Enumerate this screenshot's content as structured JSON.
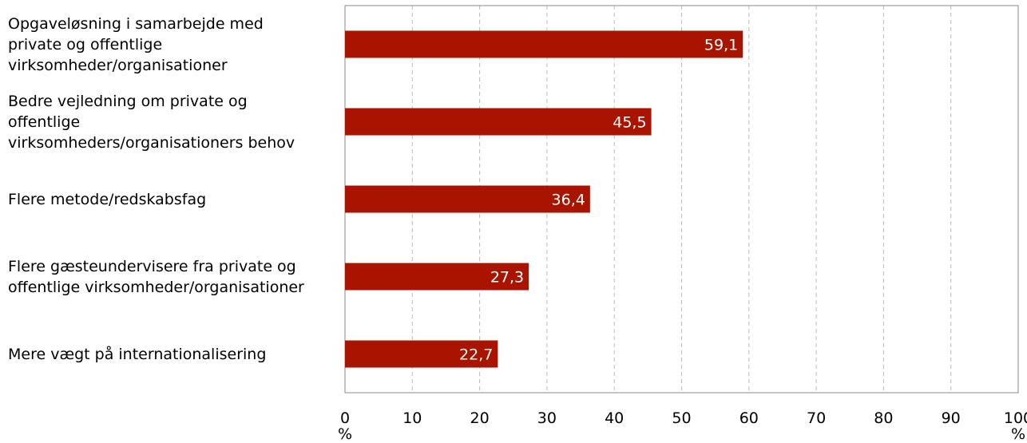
{
  "chart_data": {
    "type": "bar",
    "orientation": "horizontal",
    "categories": [
      "Opgaveløsning i samarbejde med\nprivate og offentlige\nvirksomheder/organisationer",
      "Bedre vejledning om private og\noffentlige\nvirksomheders/organisationers behov",
      "Flere metode/redskabsfag",
      "Flere gæsteundervisere fra private og\noffentlige virksomheder/organisationer",
      "Mere vægt på internationalisering"
    ],
    "values": [
      59.1,
      45.5,
      36.4,
      27.3,
      22.7
    ],
    "value_labels": [
      "59,1",
      "45,5",
      "36,4",
      "27,3",
      "22,7"
    ],
    "xlim": [
      0,
      100
    ],
    "x_ticks": [
      0,
      10,
      20,
      30,
      40,
      50,
      60,
      70,
      80,
      90,
      100
    ],
    "x_tick_labels": [
      "0",
      "10",
      "20",
      "30",
      "40",
      "50",
      "60",
      "70",
      "80",
      "90",
      "100"
    ],
    "x_unit": "%",
    "grid": "vertical dashed",
    "bar_color": "#A81400",
    "title": "",
    "xlabel": "",
    "ylabel": ""
  }
}
